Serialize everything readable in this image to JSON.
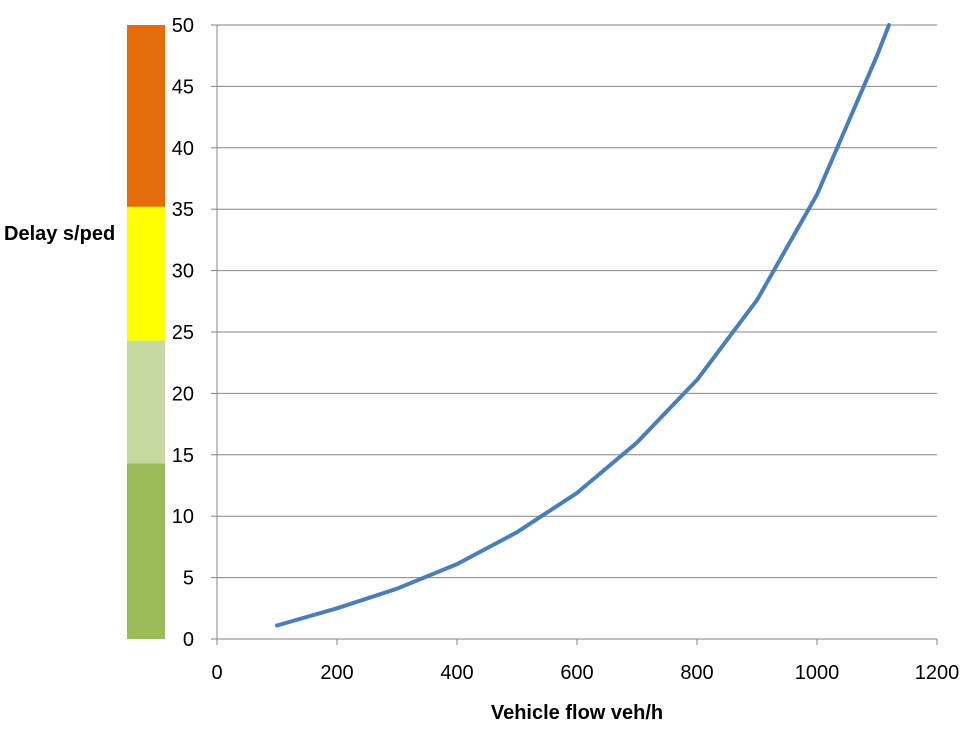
{
  "chart_data": {
    "type": "line",
    "title": "",
    "xlabel": "Vehicle flow veh/h",
    "ylabel": "Delay s/ped",
    "xlim": [
      0,
      1200
    ],
    "ylim": [
      0,
      50
    ],
    "x_ticks": [
      0,
      200,
      400,
      600,
      800,
      1000,
      1200
    ],
    "y_ticks": [
      0,
      5,
      10,
      15,
      20,
      25,
      30,
      35,
      40,
      45,
      50
    ],
    "grid": "horizontal",
    "legend": "none",
    "series": [
      {
        "color": "#4A7EBB",
        "x": [
          100,
          200,
          300,
          400,
          500,
          600,
          700,
          800,
          900,
          1000,
          1100,
          1120
        ],
        "y": [
          1.1,
          2.5,
          4.1,
          6.1,
          8.7,
          11.9,
          16.0,
          21.1,
          27.6,
          36.2,
          47.5,
          50.0
        ]
      }
    ],
    "level_of_service_bands": [
      {
        "from": 0,
        "to": 14.3,
        "color": "#9BBB59"
      },
      {
        "from": 14.3,
        "to": 24.3,
        "color": "#C6D9A0"
      },
      {
        "from": 24.3,
        "to": 35.2,
        "color": "#FFFF00"
      },
      {
        "from": 35.2,
        "to": 50,
        "color": "#E46C0A"
      }
    ]
  }
}
